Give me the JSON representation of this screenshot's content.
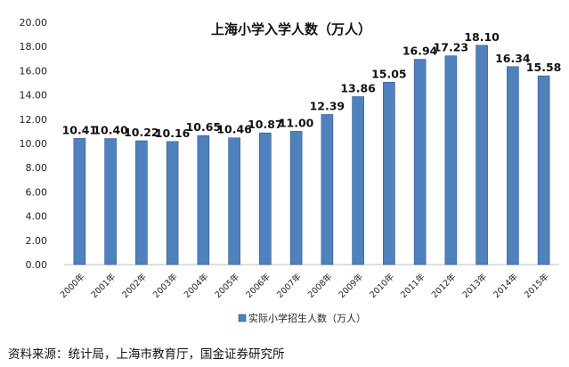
{
  "chart_data": {
    "type": "bar",
    "title": "上海小学入学人数（万人）",
    "categories": [
      "2000年",
      "2001年",
      "2002年",
      "2003年",
      "2004年",
      "2005年",
      "2006年",
      "2007年",
      "2008年",
      "2009年",
      "2010年",
      "2011年",
      "2012年",
      "2013年",
      "2014年",
      "2015年"
    ],
    "series": [
      {
        "name": "实际小学招生人数（万人）",
        "values": [
          10.41,
          10.4,
          10.22,
          10.16,
          10.65,
          10.46,
          10.87,
          11.0,
          12.39,
          13.86,
          15.05,
          16.94,
          17.23,
          18.1,
          16.34,
          15.58
        ],
        "labels": [
          "10.41",
          "10.40",
          "10.22",
          "10.16",
          "10.65",
          "10.46",
          "10.87",
          "11.00",
          "12.39",
          "13.86",
          "15.05",
          "16.94",
          "17.23",
          "18.10",
          "16.34",
          "15.58"
        ]
      }
    ],
    "ylim": [
      0,
      20
    ],
    "yticks": [
      "0.00",
      "2.00",
      "4.00",
      "6.00",
      "8.00",
      "10.00",
      "12.00",
      "14.00",
      "16.00",
      "18.00",
      "20.00"
    ],
    "grid": false,
    "legend_position": "bottom",
    "bar_color": "#4f81bd",
    "bar_edge_color": "#2f5597"
  },
  "source_note": "资料来源：统计局，上海市教育厅，国金证券研究所"
}
